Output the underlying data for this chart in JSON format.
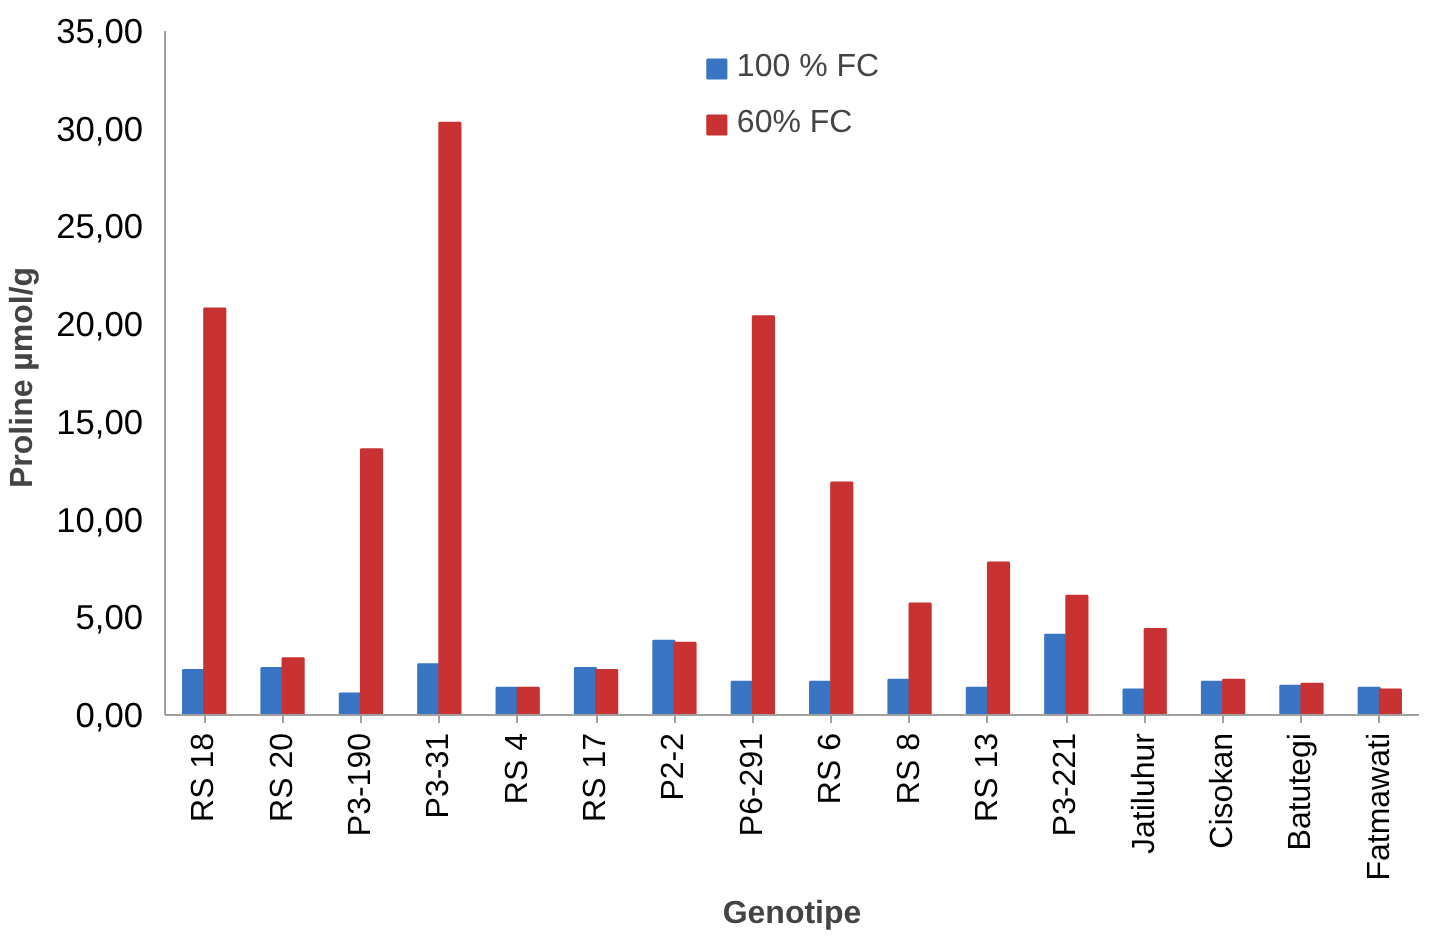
{
  "chart_data": {
    "type": "bar",
    "xlabel": "Genotipe",
    "ylabel": "Proline  µmol/g",
    "categories": [
      "RS 18",
      "RS 20",
      "P3-190",
      "P3-31",
      "RS 4",
      "RS 17",
      "P2-2",
      "P6-291",
      "RS 6",
      "RS 8",
      "RS 13",
      "P3-221",
      "Jatiluhur",
      "Cisokan",
      "Batutegi",
      "Fatmawati"
    ],
    "series": [
      {
        "name": "100 % FC",
        "color": "#3a75c4",
        "values": [
          2.3,
          2.4,
          1.1,
          2.6,
          1.4,
          2.4,
          3.8,
          1.7,
          1.7,
          1.8,
          1.4,
          4.1,
          1.3,
          1.7,
          1.5,
          1.4
        ]
      },
      {
        "name": "60% FC",
        "color": "#c83232",
        "values": [
          20.8,
          2.9,
          13.6,
          30.3,
          1.4,
          2.3,
          3.7,
          20.4,
          11.9,
          5.7,
          7.8,
          6.1,
          4.4,
          1.8,
          1.6,
          1.3
        ]
      }
    ],
    "ylim": [
      0,
      35
    ],
    "yticks": [
      {
        "value": 0,
        "label": "0,00"
      },
      {
        "value": 5,
        "label": "5,00"
      },
      {
        "value": 10,
        "label": "10,00"
      },
      {
        "value": 15,
        "label": "15,00"
      },
      {
        "value": 20,
        "label": "20,00"
      },
      {
        "value": 25,
        "label": "25,00"
      },
      {
        "value": 30,
        "label": "30,00"
      },
      {
        "value": 35,
        "label": "35,00"
      }
    ],
    "grid": false,
    "legend": "top right"
  }
}
